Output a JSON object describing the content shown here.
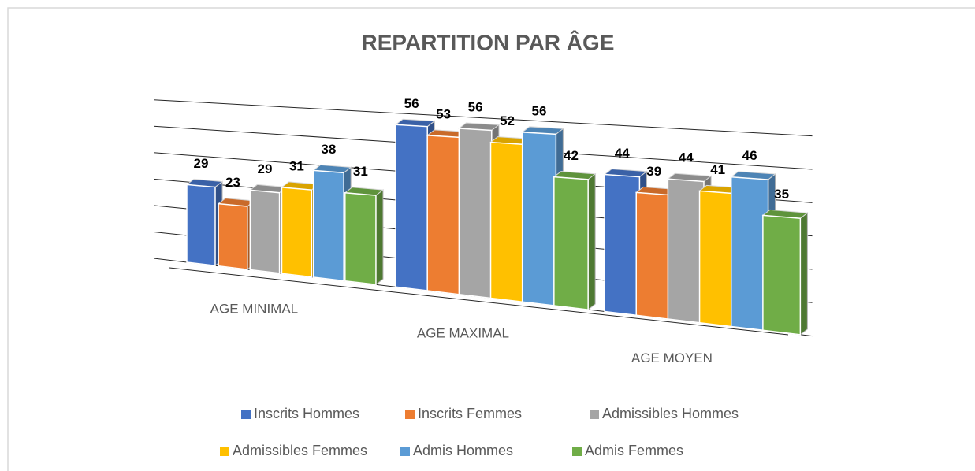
{
  "chart_data": {
    "type": "bar3d",
    "title": "REPARTITION PAR ÂGE",
    "categories": [
      "AGE MINIMAL",
      "AGE MAXIMAL",
      "AGE MOYEN"
    ],
    "series": [
      {
        "name": "Inscrits Hommes",
        "color": "#4472c4",
        "values": [
          29,
          56,
          44
        ]
      },
      {
        "name": "Inscrits Femmes",
        "color": "#ed7d31",
        "values": [
          23,
          53,
          39
        ]
      },
      {
        "name": "Admissibles Hommes",
        "color": "#a5a5a5",
        "values": [
          29,
          56,
          44
        ]
      },
      {
        "name": "Admissibles Femmes",
        "color": "#ffc000",
        "values": [
          31,
          52,
          41
        ]
      },
      {
        "name": "Admis Hommes",
        "color": "#5b9bd5",
        "values": [
          38,
          56,
          46
        ]
      },
      {
        "name": "Admis Femmes",
        "color": "#70ad47",
        "values": [
          31,
          42,
          35
        ]
      }
    ],
    "ylim": [
      0,
      60
    ],
    "yticks": [
      0,
      10,
      20,
      30,
      40,
      50,
      60
    ],
    "grid": true,
    "legend": "bottom"
  }
}
